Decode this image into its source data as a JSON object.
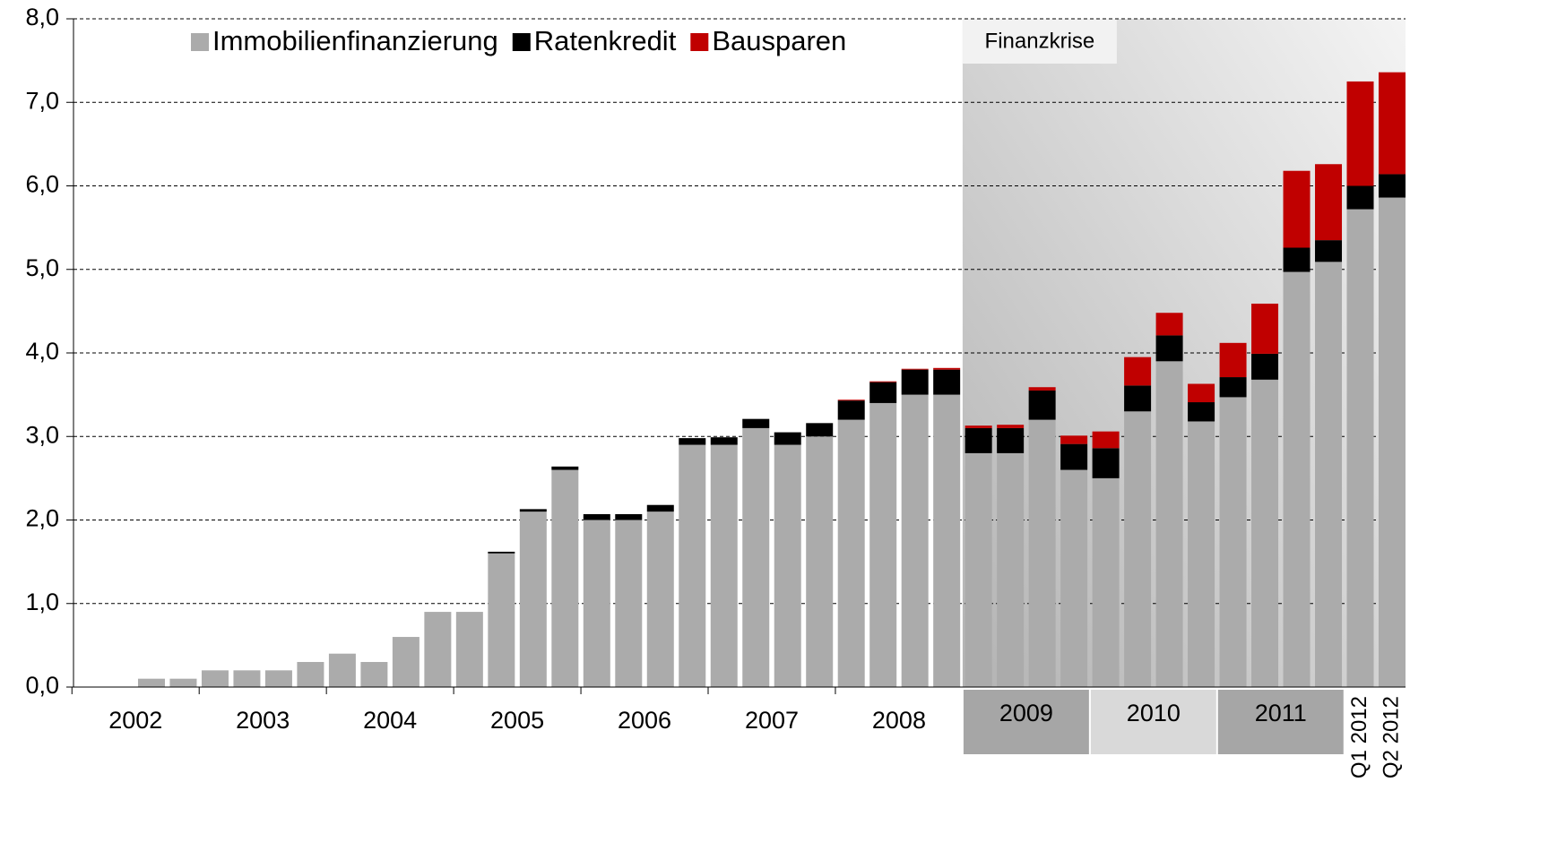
{
  "chart_data": {
    "type": "stacked_bar",
    "annotation": "Finanzkrise",
    "categories": [
      null,
      null,
      null,
      null,
      null,
      null,
      null,
      null,
      null,
      null,
      null,
      null,
      null,
      null,
      null,
      null,
      null,
      null,
      null,
      null,
      null,
      null,
      null,
      null,
      null,
      null,
      null,
      null,
      null,
      null,
      null,
      null,
      null,
      null,
      null,
      null,
      null,
      null,
      null,
      null,
      "Q1 2012",
      "Q2 2012"
    ],
    "x_groups": [
      "2002",
      "2003",
      "2004",
      "2005",
      "2006",
      "2007",
      "2008",
      "2009",
      "2010",
      "2011"
    ],
    "series": [
      {
        "name": "Immobilienfinanzierung",
        "color": "#ababab",
        "values": [
          0,
          0,
          0.1,
          0.1,
          0.2,
          0.2,
          0.2,
          0.3,
          0.4,
          0.3,
          0.6,
          0.9,
          0.9,
          1.6,
          2.1,
          2.6,
          2.0,
          2.0,
          2.1,
          2.9,
          2.9,
          3.1,
          2.9,
          3.0,
          3.2,
          3.4,
          3.5,
          3.5,
          2.8,
          2.8,
          3.2,
          2.6,
          2.5,
          3.3,
          3.9,
          3.18,
          3.47,
          3.68,
          4.97,
          5.09,
          5.72,
          5.86
        ]
      },
      {
        "name": "Ratenkredit",
        "color": "#000000",
        "values": [
          0,
          0,
          0,
          0,
          0,
          0,
          0,
          0,
          0,
          0,
          0,
          0,
          0,
          0.02,
          0.03,
          0.04,
          0.07,
          0.07,
          0.08,
          0.08,
          0.09,
          0.11,
          0.15,
          0.16,
          0.23,
          0.25,
          0.3,
          0.3,
          0.3,
          0.3,
          0.35,
          0.31,
          0.36,
          0.31,
          0.31,
          0.23,
          0.24,
          0.31,
          0.29,
          0.26,
          0.28,
          0.28
        ]
      },
      {
        "name": "Bausparen",
        "color": "#c00000",
        "values": [
          0,
          0,
          0,
          0,
          0,
          0,
          0,
          0,
          0,
          0,
          0,
          0,
          0,
          0,
          0,
          0,
          0,
          0,
          0,
          0,
          0,
          0,
          0,
          0,
          0.01,
          0.01,
          0.01,
          0.02,
          0.03,
          0.04,
          0.04,
          0.1,
          0.2,
          0.34,
          0.27,
          0.22,
          0.41,
          0.6,
          0.92,
          0.91,
          1.25,
          1.22
        ]
      }
    ],
    "ylim": [
      0,
      8
    ],
    "yticks": [
      {
        "value": 0,
        "label": "0,0"
      },
      {
        "value": 1,
        "label": "1,0"
      },
      {
        "value": 2,
        "label": "2,0"
      },
      {
        "value": 3,
        "label": "3,0"
      },
      {
        "value": 4,
        "label": "4,0"
      },
      {
        "value": 5,
        "label": "5,0"
      },
      {
        "value": 6,
        "label": "6,0"
      },
      {
        "value": 7,
        "label": "7,0"
      },
      {
        "value": 8,
        "label": "8,0"
      }
    ],
    "grid": true
  }
}
